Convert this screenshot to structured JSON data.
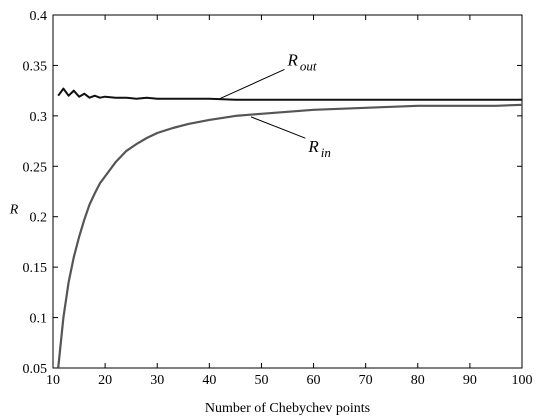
{
  "chart_data": {
    "type": "line",
    "title": "",
    "xlabel": "Number of Chebychev points",
    "ylabel": "R",
    "xlim": [
      10,
      100
    ],
    "ylim": [
      0.05,
      0.4
    ],
    "xticks": [
      10,
      20,
      30,
      40,
      50,
      60,
      70,
      80,
      90,
      100
    ],
    "yticks": [
      0.05,
      0.1,
      0.15,
      0.2,
      0.25,
      0.3,
      0.35,
      0.4
    ],
    "xtick_labels": [
      "10",
      "20",
      "30",
      "40",
      "50",
      "60",
      "70",
      "80",
      "90",
      "100"
    ],
    "ytick_labels": [
      "0.05",
      "0.1",
      "0.15",
      "0.2",
      "0.25",
      "0.3",
      "0.35",
      "0.4"
    ],
    "grid": false,
    "series": [
      {
        "name": "R out",
        "color": "#111111",
        "x": [
          11,
          12,
          13,
          14,
          15,
          16,
          17,
          18,
          19,
          20,
          22,
          24,
          26,
          28,
          30,
          33,
          36,
          40,
          45,
          50,
          60,
          70,
          80,
          90,
          100
        ],
        "y": [
          0.32,
          0.327,
          0.32,
          0.325,
          0.319,
          0.322,
          0.318,
          0.32,
          0.318,
          0.319,
          0.318,
          0.318,
          0.317,
          0.318,
          0.317,
          0.317,
          0.317,
          0.317,
          0.316,
          0.316,
          0.316,
          0.316,
          0.316,
          0.316,
          0.316
        ]
      },
      {
        "name": "R in",
        "color": "#555555",
        "x": [
          11,
          12,
          13,
          14,
          15,
          16,
          17,
          18,
          19,
          20,
          22,
          24,
          26,
          28,
          30,
          33,
          36,
          40,
          45,
          50,
          55,
          60,
          65,
          70,
          75,
          80,
          85,
          90,
          95,
          100
        ],
        "y": [
          0.05,
          0.1,
          0.135,
          0.16,
          0.18,
          0.197,
          0.212,
          0.223,
          0.233,
          0.24,
          0.254,
          0.265,
          0.272,
          0.278,
          0.283,
          0.288,
          0.292,
          0.296,
          0.3,
          0.302,
          0.304,
          0.306,
          0.307,
          0.308,
          0.309,
          0.31,
          0.31,
          0.31,
          0.31,
          0.311
        ]
      }
    ],
    "annotations": [
      {
        "main": "R",
        "sub": "out",
        "x": 55,
        "y": 0.35,
        "arrow_to": [
          42,
          0.317
        ]
      },
      {
        "main": "R",
        "sub": "in",
        "x": 59,
        "y": 0.264,
        "arrow_to": [
          48,
          0.299
        ]
      }
    ]
  }
}
